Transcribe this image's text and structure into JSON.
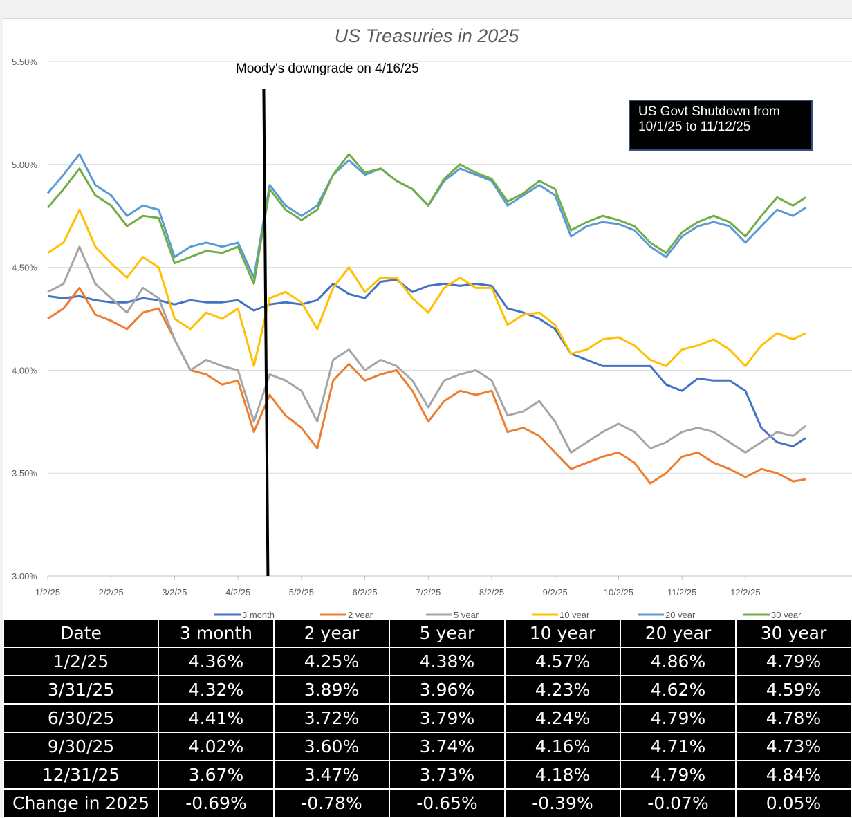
{
  "chart_data": {
    "type": "line",
    "title": "US Treasuries in 2025",
    "xlabel": "",
    "ylabel": "",
    "ylim": [
      3.0,
      5.5
    ],
    "yticks": [
      "5.50%",
      "5.00%",
      "4.50%",
      "4.00%",
      "3.50%",
      "3.00%"
    ],
    "ytick_values": [
      5.5,
      5.0,
      4.5,
      4.0,
      3.5,
      3.0
    ],
    "xticks": [
      "1/2/25",
      "2/2/25",
      "3/2/25",
      "4/2/25",
      "5/2/25",
      "6/2/25",
      "7/2/25",
      "8/2/25",
      "9/2/25",
      "10/2/25",
      "11/2/25",
      "12/2/25"
    ],
    "xtick_positions": [
      0,
      1,
      2,
      3,
      4,
      5,
      6,
      7,
      8,
      9,
      10,
      11
    ],
    "x_range": [
      0,
      11.95
    ],
    "annotations": {
      "downgrade_label": "Moody's downgrade on 4/16/25",
      "downgrade_x": 3.45,
      "shutdown_label_line1": "US Govt Shutdown from",
      "shutdown_label_line2": "10/1/25 to 11/12/25"
    },
    "series": [
      {
        "name": "3 month",
        "color": "#4472c4",
        "x": [
          0,
          0.25,
          0.5,
          0.75,
          1,
          1.25,
          1.5,
          1.75,
          2,
          2.25,
          2.5,
          2.75,
          3,
          3.25,
          3.5,
          3.75,
          4,
          4.25,
          4.5,
          4.75,
          5,
          5.25,
          5.5,
          5.75,
          6,
          6.25,
          6.5,
          6.75,
          7,
          7.25,
          7.5,
          7.75,
          8,
          8.25,
          8.5,
          8.75,
          9,
          9.25,
          9.5,
          9.75,
          10,
          10.25,
          10.5,
          10.75,
          11,
          11.25,
          11.5,
          11.75,
          11.95
        ],
        "values": [
          4.36,
          4.35,
          4.36,
          4.34,
          4.33,
          4.33,
          4.35,
          4.34,
          4.32,
          4.34,
          4.33,
          4.33,
          4.34,
          4.29,
          4.32,
          4.33,
          4.32,
          4.34,
          4.42,
          4.37,
          4.35,
          4.43,
          4.44,
          4.38,
          4.41,
          4.42,
          4.41,
          4.42,
          4.41,
          4.3,
          4.28,
          4.25,
          4.2,
          4.08,
          4.05,
          4.02,
          4.02,
          4.02,
          4.02,
          3.93,
          3.9,
          3.96,
          3.95,
          3.95,
          3.9,
          3.72,
          3.65,
          3.63,
          3.67
        ]
      },
      {
        "name": "2 year",
        "color": "#ed7d31",
        "x": [
          0,
          0.25,
          0.5,
          0.75,
          1,
          1.25,
          1.5,
          1.75,
          2,
          2.25,
          2.5,
          2.75,
          3,
          3.25,
          3.5,
          3.75,
          4,
          4.25,
          4.5,
          4.75,
          5,
          5.25,
          5.5,
          5.75,
          6,
          6.25,
          6.5,
          6.75,
          7,
          7.25,
          7.5,
          7.75,
          8,
          8.25,
          8.5,
          8.75,
          9,
          9.25,
          9.5,
          9.75,
          10,
          10.25,
          10.5,
          10.75,
          11,
          11.25,
          11.5,
          11.75,
          11.95
        ],
        "values": [
          4.25,
          4.3,
          4.4,
          4.27,
          4.24,
          4.2,
          4.28,
          4.3,
          4.15,
          4.0,
          3.98,
          3.93,
          3.95,
          3.7,
          3.88,
          3.78,
          3.72,
          3.62,
          3.95,
          4.03,
          3.95,
          3.98,
          4.0,
          3.9,
          3.75,
          3.85,
          3.9,
          3.88,
          3.9,
          3.7,
          3.72,
          3.68,
          3.6,
          3.52,
          3.55,
          3.58,
          3.6,
          3.55,
          3.45,
          3.5,
          3.58,
          3.6,
          3.55,
          3.52,
          3.48,
          3.52,
          3.5,
          3.46,
          3.47
        ]
      },
      {
        "name": "5 year",
        "color": "#a5a5a5",
        "x": [
          0,
          0.25,
          0.5,
          0.75,
          1,
          1.25,
          1.5,
          1.75,
          2,
          2.25,
          2.5,
          2.75,
          3,
          3.25,
          3.5,
          3.75,
          4,
          4.25,
          4.5,
          4.75,
          5,
          5.25,
          5.5,
          5.75,
          6,
          6.25,
          6.5,
          6.75,
          7,
          7.25,
          7.5,
          7.75,
          8,
          8.25,
          8.5,
          8.75,
          9,
          9.25,
          9.5,
          9.75,
          10,
          10.25,
          10.5,
          10.75,
          11,
          11.25,
          11.5,
          11.75,
          11.95
        ],
        "values": [
          4.38,
          4.42,
          4.6,
          4.42,
          4.35,
          4.28,
          4.4,
          4.35,
          4.15,
          4.0,
          4.05,
          4.02,
          4.0,
          3.75,
          3.98,
          3.95,
          3.9,
          3.75,
          4.05,
          4.1,
          4.0,
          4.05,
          4.02,
          3.95,
          3.82,
          3.95,
          3.98,
          4.0,
          3.95,
          3.78,
          3.8,
          3.85,
          3.75,
          3.6,
          3.65,
          3.7,
          3.74,
          3.7,
          3.62,
          3.65,
          3.7,
          3.72,
          3.7,
          3.65,
          3.6,
          3.65,
          3.7,
          3.68,
          3.73
        ]
      },
      {
        "name": "10 year",
        "color": "#ffc000",
        "x": [
          0,
          0.25,
          0.5,
          0.75,
          1,
          1.25,
          1.5,
          1.75,
          2,
          2.25,
          2.5,
          2.75,
          3,
          3.25,
          3.5,
          3.75,
          4,
          4.25,
          4.5,
          4.75,
          5,
          5.25,
          5.5,
          5.75,
          6,
          6.25,
          6.5,
          6.75,
          7,
          7.25,
          7.5,
          7.75,
          8,
          8.25,
          8.5,
          8.75,
          9,
          9.25,
          9.5,
          9.75,
          10,
          10.25,
          10.5,
          10.75,
          11,
          11.25,
          11.5,
          11.75,
          11.95
        ],
        "values": [
          4.57,
          4.62,
          4.78,
          4.6,
          4.52,
          4.45,
          4.55,
          4.5,
          4.25,
          4.2,
          4.28,
          4.25,
          4.3,
          4.02,
          4.35,
          4.38,
          4.33,
          4.2,
          4.4,
          4.5,
          4.38,
          4.45,
          4.45,
          4.35,
          4.28,
          4.4,
          4.45,
          4.4,
          4.4,
          4.22,
          4.27,
          4.28,
          4.22,
          4.08,
          4.1,
          4.15,
          4.16,
          4.12,
          4.05,
          4.02,
          4.1,
          4.12,
          4.15,
          4.1,
          4.02,
          4.12,
          4.18,
          4.15,
          4.18
        ]
      },
      {
        "name": "20 year",
        "color": "#5b9bd5",
        "x": [
          0,
          0.25,
          0.5,
          0.75,
          1,
          1.25,
          1.5,
          1.75,
          2,
          2.25,
          2.5,
          2.75,
          3,
          3.25,
          3.5,
          3.75,
          4,
          4.25,
          4.5,
          4.75,
          5,
          5.25,
          5.5,
          5.75,
          6,
          6.25,
          6.5,
          6.75,
          7,
          7.25,
          7.5,
          7.75,
          8,
          8.25,
          8.5,
          8.75,
          9,
          9.25,
          9.5,
          9.75,
          10,
          10.25,
          10.5,
          10.75,
          11,
          11.25,
          11.5,
          11.75,
          11.95
        ],
        "values": [
          4.86,
          4.95,
          5.05,
          4.9,
          4.85,
          4.75,
          4.8,
          4.78,
          4.55,
          4.6,
          4.62,
          4.6,
          4.62,
          4.45,
          4.9,
          4.8,
          4.75,
          4.8,
          4.95,
          5.02,
          4.95,
          4.98,
          4.92,
          4.88,
          4.8,
          4.92,
          4.98,
          4.95,
          4.92,
          4.8,
          4.85,
          4.9,
          4.85,
          4.65,
          4.7,
          4.72,
          4.71,
          4.68,
          4.6,
          4.55,
          4.65,
          4.7,
          4.72,
          4.7,
          4.62,
          4.7,
          4.78,
          4.75,
          4.79
        ]
      },
      {
        "name": "30 year",
        "color": "#70ad47",
        "x": [
          0,
          0.25,
          0.5,
          0.75,
          1,
          1.25,
          1.5,
          1.75,
          2,
          2.25,
          2.5,
          2.75,
          3,
          3.25,
          3.5,
          3.75,
          4,
          4.25,
          4.5,
          4.75,
          5,
          5.25,
          5.5,
          5.75,
          6,
          6.25,
          6.5,
          6.75,
          7,
          7.25,
          7.5,
          7.75,
          8,
          8.25,
          8.5,
          8.75,
          9,
          9.25,
          9.5,
          9.75,
          10,
          10.25,
          10.5,
          10.75,
          11,
          11.25,
          11.5,
          11.75,
          11.95
        ],
        "values": [
          4.79,
          4.88,
          4.98,
          4.85,
          4.8,
          4.7,
          4.75,
          4.74,
          4.52,
          4.55,
          4.58,
          4.57,
          4.6,
          4.42,
          4.88,
          4.78,
          4.73,
          4.78,
          4.95,
          5.05,
          4.96,
          4.98,
          4.92,
          4.88,
          4.8,
          4.93,
          5.0,
          4.96,
          4.93,
          4.82,
          4.86,
          4.92,
          4.88,
          4.68,
          4.72,
          4.75,
          4.73,
          4.7,
          4.62,
          4.57,
          4.67,
          4.72,
          4.75,
          4.72,
          4.65,
          4.75,
          4.84,
          4.8,
          4.84
        ]
      }
    ]
  },
  "table": {
    "headers": [
      "Date",
      "3 month",
      "2 year",
      "5 year",
      "10 year",
      "20 year",
      "30 year"
    ],
    "rows": [
      [
        "1/2/25",
        "4.36%",
        "4.25%",
        "4.38%",
        "4.57%",
        "4.86%",
        "4.79%"
      ],
      [
        "3/31/25",
        "4.32%",
        "3.89%",
        "3.96%",
        "4.23%",
        "4.62%",
        "4.59%"
      ],
      [
        "6/30/25",
        "4.41%",
        "3.72%",
        "3.79%",
        "4.24%",
        "4.79%",
        "4.78%"
      ],
      [
        "9/30/25",
        "4.02%",
        "3.60%",
        "3.74%",
        "4.16%",
        "4.71%",
        "4.73%"
      ],
      [
        "12/31/25",
        "3.67%",
        "3.47%",
        "3.73%",
        "4.18%",
        "4.79%",
        "4.84%"
      ],
      [
        "Change in 2025",
        "-0.69%",
        "-0.78%",
        "-0.65%",
        "-0.39%",
        "-0.07%",
        "0.05%"
      ]
    ]
  }
}
